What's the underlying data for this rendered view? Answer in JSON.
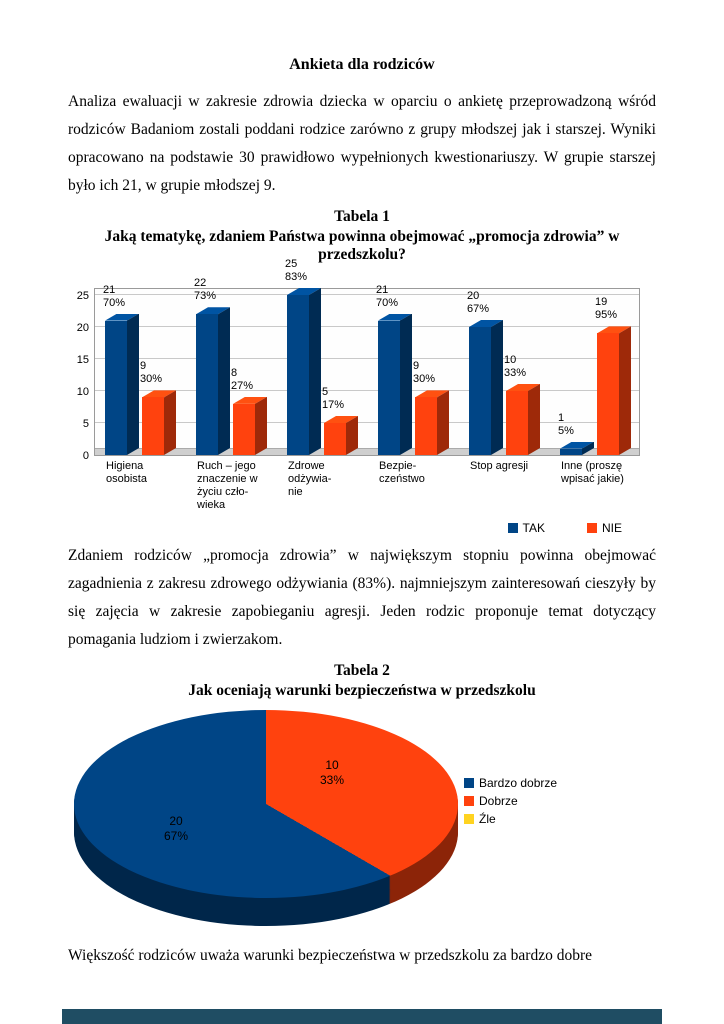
{
  "doc": {
    "title": "Ankieta dla rodziców",
    "para1": "Analiza ewaluacji w zakresie zdrowia dziecka w oparciu o ankietę przeprowadzoną wśród rodziców Badaniom zostali poddani rodzice zarówno z grupy młodszej jak i starszej. Wyniki opracowano na podstawie 30 prawidłowo wypełnionych kwestionariuszy. W grupie starszej było ich 21, w grupie młodszej 9.",
    "tabela1": "Tabela 1",
    "chart1_title": "Jaką tematykę, zdaniem Państwa powinna obejmować „promocja zdrowia” w przedszkolu?",
    "para2": "Zdaniem rodziców „promocja zdrowia” w największym stopniu powinna obejmować zagadnienia z zakresu zdrowego odżywiania (83%). najmniejszym zainteresowań cieszyły by się zajęcia w zakresie zapobieganiu agresji. Jeden rodzic proponuje temat dotyczący pomagania ludziom i zwierzakom.",
    "tabela2": "Tabela 2",
    "chart2_title": "Jak oceniają warunki bezpieczeństwa w przedszkolu",
    "para3": "Większość rodziców uważa warunki bezpieczeństwa w przedszkolu za bardzo dobre"
  },
  "footer": {
    "color": "#1f4d63"
  },
  "chart_data": [
    {
      "type": "bar",
      "title": "Jaką tematykę, zdaniem Państwa powinna obejmować „promocja zdrowia” w przedszkolu?",
      "ylim": [
        0,
        25
      ],
      "yticks": [
        0,
        5,
        10,
        15,
        20,
        25
      ],
      "grid": true,
      "legend_position": "bottom-right",
      "categories": [
        [
          "Higiena",
          "osobista"
        ],
        [
          "Ruch – jego",
          "znaczenie w",
          "życiu czło-",
          "wieka"
        ],
        [
          "Zdrowe",
          "odżywia-",
          "nie"
        ],
        [
          "Bezpie-",
          "czeństwo"
        ],
        [
          "Stop agresji"
        ],
        [
          "Inne (proszę",
          "wpisać jakie)"
        ]
      ],
      "series": [
        {
          "name": "TAK",
          "color": "#004586",
          "values": [
            21,
            22,
            25,
            21,
            20,
            1
          ],
          "labels": [
            [
              "21",
              "70%"
            ],
            [
              "22",
              "73%"
            ],
            [
              "25",
              "83%"
            ],
            [
              "21",
              "70%"
            ],
            [
              "20",
              "67%"
            ],
            [
              "1",
              "5%"
            ]
          ]
        },
        {
          "name": "NIE",
          "color": "#FF420E",
          "values": [
            9,
            8,
            5,
            9,
            10,
            19
          ],
          "labels": [
            [
              "9",
              "30%"
            ],
            [
              "8",
              "27%"
            ],
            [
              "5",
              "17%"
            ],
            [
              "9",
              "30%"
            ],
            [
              "10",
              "33%"
            ],
            [
              "19",
              "95%"
            ]
          ]
        }
      ]
    },
    {
      "type": "pie",
      "title": "Jak oceniają warunki bezpieczeństwa w przedszkolu",
      "legend_position": "right",
      "slices": [
        {
          "label": "Bardzo dobrze",
          "value": 20,
          "pct": "67%",
          "color": "#004586"
        },
        {
          "label": "Dobrze",
          "value": 10,
          "pct": "33%",
          "color": "#FF420E"
        },
        {
          "label": "Źle",
          "value": 0,
          "pct": "",
          "color": "#FFD320"
        }
      ],
      "draw_order": [
        1,
        0
      ]
    }
  ]
}
